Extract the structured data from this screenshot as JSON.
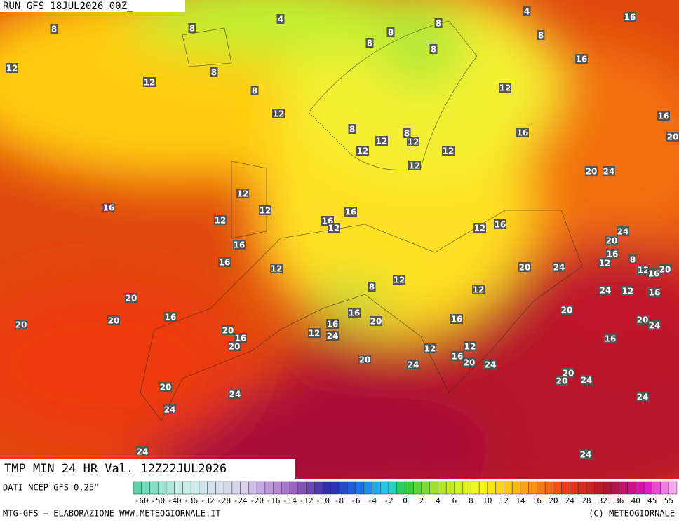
{
  "header": {
    "run": "RUN GFS 18JUL2026 00Z_"
  },
  "map": {
    "field": "TMP MIN 24 HR Val. 12Z22JUL2026",
    "labels": [
      4,
      4,
      16,
      8,
      8,
      8,
      8,
      8,
      8,
      8,
      16,
      12,
      8,
      12,
      8,
      12,
      12,
      16,
      8,
      8,
      16,
      20,
      12,
      12,
      12,
      12,
      12,
      20,
      24,
      12,
      16,
      12,
      16,
      12,
      16,
      12,
      12,
      16,
      24,
      16,
      20,
      16,
      8,
      12,
      16,
      12,
      20,
      24,
      12,
      16,
      20,
      12,
      8,
      12,
      24,
      12,
      16,
      20,
      20,
      16,
      16,
      16,
      20,
      20,
      24,
      20,
      20,
      16,
      20,
      16,
      12,
      24,
      16,
      20,
      12,
      12,
      16,
      20,
      24,
      20,
      24,
      20,
      24,
      20,
      20,
      24,
      24,
      24,
      24,
      24
    ]
  },
  "colorbar": {
    "labels": [
      -60,
      -50,
      -40,
      -36,
      -32,
      -28,
      -24,
      -20,
      -16,
      -14,
      -12,
      -10,
      -8,
      -6,
      -4,
      -2,
      0,
      2,
      4,
      6,
      8,
      10,
      12,
      14,
      16,
      20,
      24,
      28,
      32,
      36,
      40,
      45,
      55
    ]
  },
  "footer": {
    "source": "DATI NCEP GFS 0.25°",
    "credit": "MTG-GFS — ELABORAZIONE WWW.METEOGIORNALE.IT",
    "copyright": "(C) METEOGIORNALE"
  }
}
